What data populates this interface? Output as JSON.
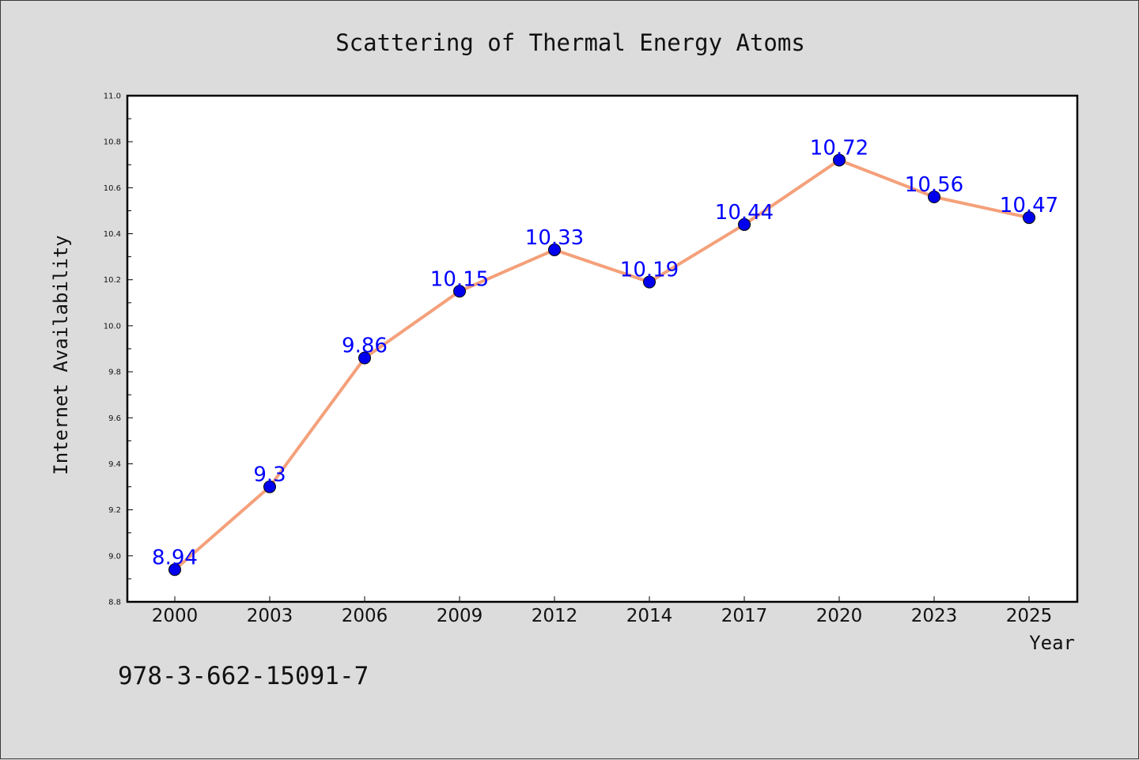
{
  "chart_data": {
    "type": "line",
    "title": "Scattering of Thermal Energy Atoms",
    "xlabel": "Year",
    "ylabel": "Internet Availability",
    "categories": [
      "2000",
      "2003",
      "2006",
      "2009",
      "2012",
      "2014",
      "2017",
      "2020",
      "2023",
      "2025"
    ],
    "series": [
      {
        "values": [
          8.94,
          9.3,
          9.86,
          10.15,
          10.33,
          10.19,
          10.44,
          10.72,
          10.56,
          10.47
        ],
        "labels": [
          "8.94",
          "9.3",
          "9.86",
          "10.15",
          "10.33",
          "10.19",
          "10.44",
          "10.72",
          "10.56",
          "10.47"
        ],
        "line_color": "#f4a07a",
        "marker_color": "#0000ee"
      }
    ],
    "ylim": [
      8.8,
      11.0
    ],
    "yticks": [
      "8.8",
      "9.0",
      "9.2",
      "9.4",
      "9.6",
      "9.8",
      "10.0",
      "10.2",
      "10.4",
      "10.6",
      "10.8",
      "11.0"
    ],
    "grid": false,
    "legend": "none"
  },
  "footer": {
    "isbn": "978-3-662-15091-7"
  },
  "colors": {
    "background": "#dcdcdc",
    "plot_background": "#ffffff",
    "label_color": "#0000ff"
  }
}
